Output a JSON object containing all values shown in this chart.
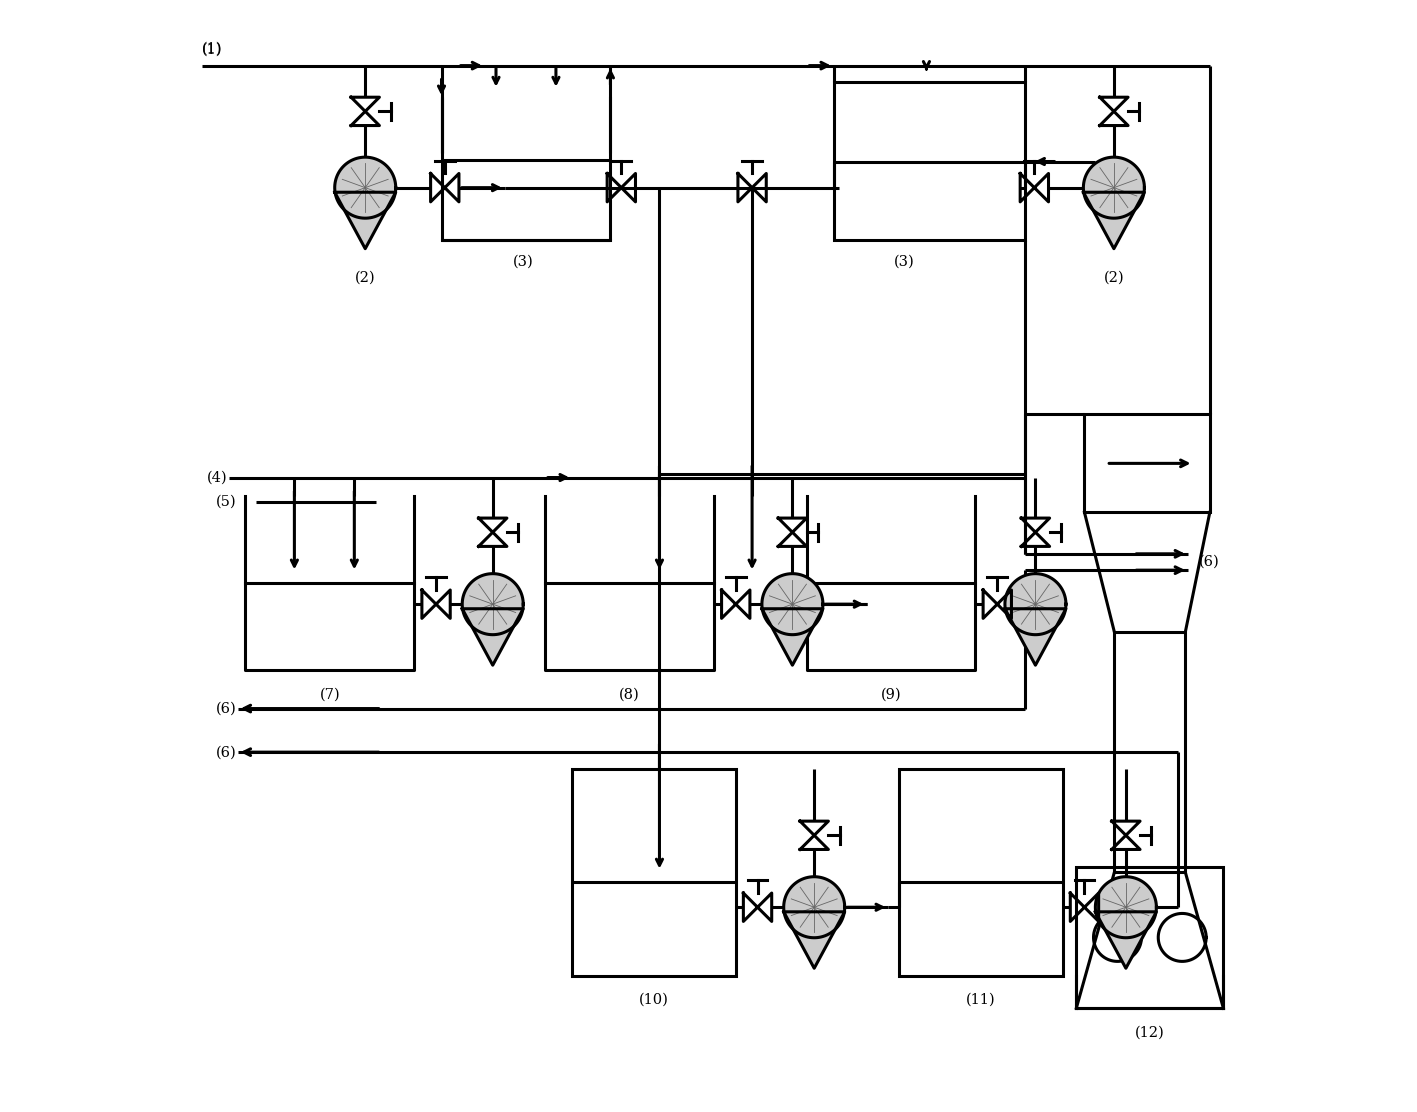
{
  "bg": "#ffffff",
  "lc": "#000000",
  "lw": 2.2,
  "fig_w": 14.17,
  "fig_h": 11.12,
  "dpi": 100,
  "pump_r": 0.028,
  "valve_s": 0.013
}
